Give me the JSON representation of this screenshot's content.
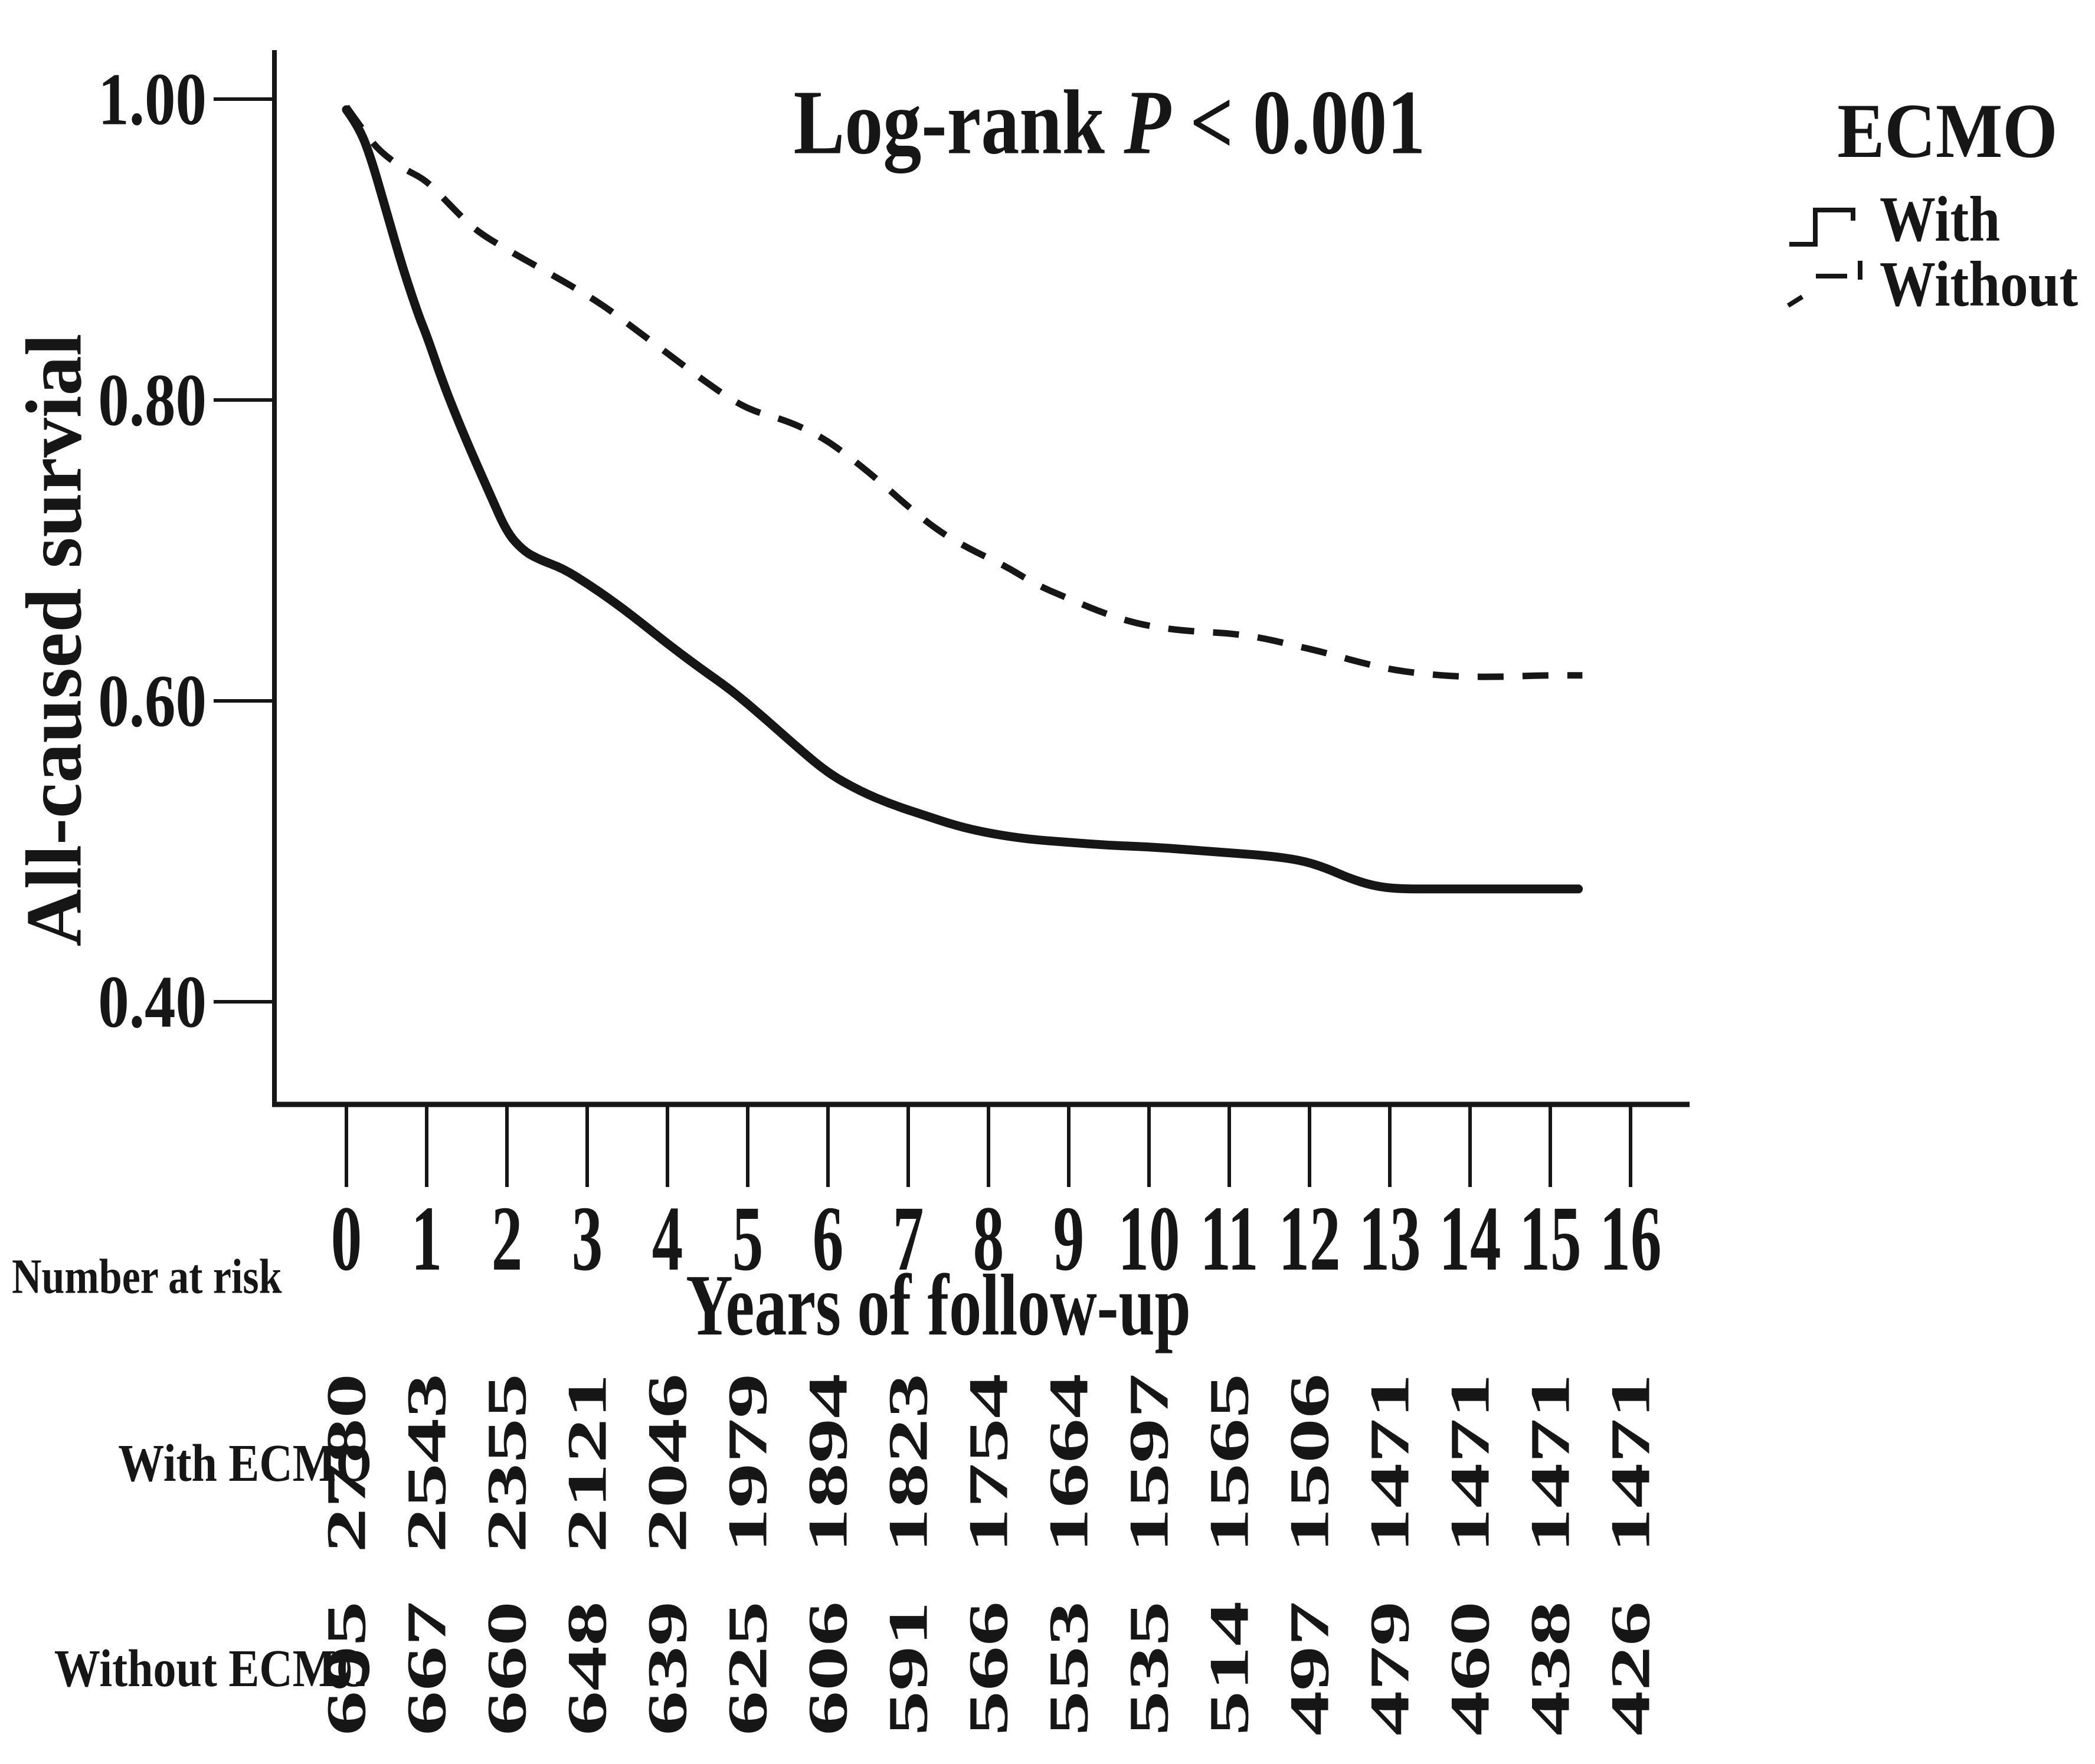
{
  "colors": {
    "ink": "#161616",
    "background": "#ffffff"
  },
  "chart_data": {
    "type": "line",
    "subtype": "kaplan-meier-survival",
    "annotation": {
      "full": "Log-rank P < 0.001",
      "prefix": "Log-rank ",
      "p_symbol": "P",
      "suffix": " < 0.001"
    },
    "xlabel": "Years of follow-up",
    "ylabel": "All-caused survial",
    "xlim": [
      0,
      16.8
    ],
    "ylim": [
      0.33,
      1.03
    ],
    "grid": false,
    "x_ticks": [
      "0",
      "1",
      "2",
      "3",
      "4",
      "5",
      "6",
      "7",
      "8",
      "9",
      "10",
      "11",
      "12",
      "13",
      "14",
      "15",
      "16"
    ],
    "x_tick_values": [
      0,
      1,
      2,
      3,
      4,
      5,
      6,
      7,
      8,
      9,
      10,
      11,
      12,
      13,
      14,
      15,
      16
    ],
    "y_ticks": [
      "1.00",
      "0.80",
      "0.60",
      "0.40"
    ],
    "y_tick_values": [
      1.0,
      0.8,
      0.6,
      0.4
    ],
    "legend": {
      "title": "ECMO",
      "position": "top-right",
      "entries": [
        {
          "label": "With",
          "line_style": "solid"
        },
        {
          "label": "Without",
          "line_style": "dashed"
        }
      ]
    },
    "series": [
      {
        "name": "With",
        "line": "solid",
        "points": [
          [
            0,
            0.993
          ],
          [
            0.15,
            0.982
          ],
          [
            0.3,
            0.962
          ],
          [
            0.5,
            0.925
          ],
          [
            0.7,
            0.888
          ],
          [
            0.9,
            0.856
          ],
          [
            1.0,
            0.843
          ],
          [
            1.2,
            0.812
          ],
          [
            1.4,
            0.785
          ],
          [
            1.6,
            0.76
          ],
          [
            1.8,
            0.736
          ],
          [
            2.0,
            0.712
          ],
          [
            2.2,
            0.7
          ],
          [
            2.4,
            0.694
          ],
          [
            2.7,
            0.688
          ],
          [
            3.0,
            0.678
          ],
          [
            3.3,
            0.667
          ],
          [
            3.6,
            0.655
          ],
          [
            4.0,
            0.638
          ],
          [
            4.4,
            0.622
          ],
          [
            4.8,
            0.607
          ],
          [
            5.2,
            0.589
          ],
          [
            5.6,
            0.57
          ],
          [
            6.0,
            0.552
          ],
          [
            6.4,
            0.54
          ],
          [
            6.8,
            0.531
          ],
          [
            7.2,
            0.524
          ],
          [
            7.6,
            0.517
          ],
          [
            8.0,
            0.512
          ],
          [
            8.5,
            0.508
          ],
          [
            9.0,
            0.506
          ],
          [
            9.5,
            0.504
          ],
          [
            10.0,
            0.503
          ],
          [
            10.5,
            0.501
          ],
          [
            11.0,
            0.499
          ],
          [
            11.5,
            0.497
          ],
          [
            11.9,
            0.494
          ],
          [
            12.2,
            0.489
          ],
          [
            12.5,
            0.482
          ],
          [
            12.8,
            0.477
          ],
          [
            13.1,
            0.475
          ],
          [
            13.6,
            0.475
          ],
          [
            14.2,
            0.475
          ],
          [
            14.8,
            0.475
          ],
          [
            15.35,
            0.475
          ]
        ]
      },
      {
        "name": "Without",
        "line": "dashed",
        "points": [
          [
            0,
            0.995
          ],
          [
            0.2,
            0.98
          ],
          [
            0.4,
            0.966
          ],
          [
            0.7,
            0.954
          ],
          [
            1.0,
            0.946
          ],
          [
            1.3,
            0.929
          ],
          [
            1.6,
            0.913
          ],
          [
            2.0,
            0.9
          ],
          [
            2.4,
            0.888
          ],
          [
            2.8,
            0.876
          ],
          [
            3.2,
            0.863
          ],
          [
            3.6,
            0.847
          ],
          [
            4.0,
            0.831
          ],
          [
            4.4,
            0.815
          ],
          [
            4.8,
            0.8
          ],
          [
            5.1,
            0.792
          ],
          [
            5.5,
            0.786
          ],
          [
            5.9,
            0.776
          ],
          [
            6.2,
            0.765
          ],
          [
            6.6,
            0.748
          ],
          [
            7.0,
            0.729
          ],
          [
            7.4,
            0.712
          ],
          [
            7.8,
            0.7
          ],
          [
            8.2,
            0.69
          ],
          [
            8.6,
            0.677
          ],
          [
            9.0,
            0.668
          ],
          [
            9.4,
            0.659
          ],
          [
            9.8,
            0.652
          ],
          [
            10.2,
            0.648
          ],
          [
            10.6,
            0.646
          ],
          [
            11.0,
            0.645
          ],
          [
            11.4,
            0.642
          ],
          [
            11.8,
            0.637
          ],
          [
            12.2,
            0.632
          ],
          [
            12.6,
            0.626
          ],
          [
            13.0,
            0.621
          ],
          [
            13.4,
            0.618
          ],
          [
            13.9,
            0.616
          ],
          [
            14.4,
            0.616
          ],
          [
            14.9,
            0.617
          ],
          [
            15.4,
            0.617
          ]
        ]
      }
    ],
    "number_at_risk": {
      "header": "Number at risk",
      "rows": [
        {
          "label": "With ECMO",
          "values": [
            "2780",
            "2543",
            "2355",
            "2121",
            "2046",
            "1979",
            "1894",
            "1823",
            "1754",
            "1664",
            "1597",
            "1565",
            "1506",
            "1471",
            "1471",
            "1471",
            "1471"
          ]
        },
        {
          "label": "Without ECMO",
          "values": [
            "695",
            "667",
            "660",
            "648",
            "639",
            "625",
            "606",
            "591",
            "566",
            "553",
            "535",
            "514",
            "497",
            "479",
            "460",
            "438",
            "426"
          ]
        }
      ]
    }
  }
}
